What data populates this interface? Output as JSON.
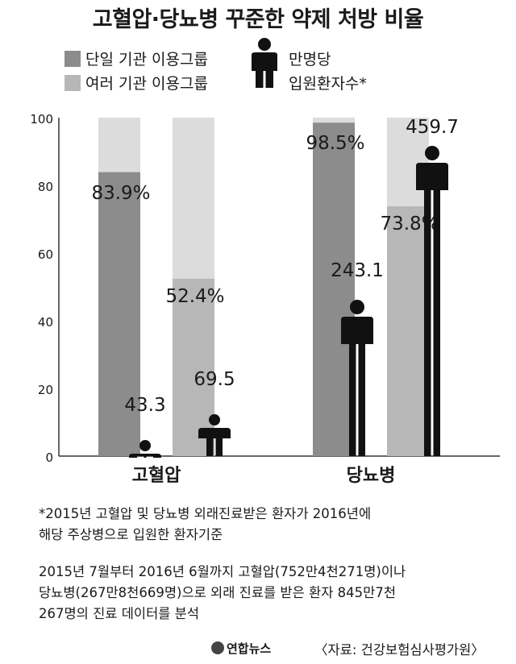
{
  "title": "고혈압·당뇨병 꾸준한 약제 처방 비율",
  "legend": {
    "single_label": "단일 기관 이용그룹",
    "multi_label": "여러 기관 이용그룹",
    "patients_label_line1": "만명당",
    "patients_label_line2": "입원환자수*",
    "patients_icon": "person-icon"
  },
  "colors": {
    "single": "#8c8c8c",
    "multi": "#b7b7b7",
    "background_bar": "#dcdcdc",
    "person": "#111111"
  },
  "chart_data": {
    "type": "bar",
    "categories": [
      "고혈압",
      "당뇨병"
    ],
    "series": [
      {
        "name": "단일 기관 이용그룹",
        "values": [
          83.9,
          98.5
        ],
        "labels": [
          "83.9%",
          "98.5%"
        ]
      },
      {
        "name": "여러 기관 이용그룹",
        "values": [
          52.4,
          73.8
        ],
        "labels": [
          "52.4%",
          "73.8%"
        ]
      }
    ],
    "patients_per_10000": {
      "name": "만명당 입원환자수*",
      "values": [
        [
          43.3,
          69.5
        ],
        [
          243.1,
          459.7
        ]
      ],
      "labels": [
        [
          "43.3",
          "69.5"
        ],
        [
          "243.1",
          "459.7"
        ]
      ]
    },
    "ylim": [
      0,
      100
    ],
    "yticks": [
      "0",
      "20",
      "40",
      "60",
      "80",
      "100"
    ],
    "grid": false,
    "legend_position": "top-left"
  },
  "notes": {
    "footnote_line1": "*2015년 고혈압 및 당뇨병 외래진료받은 환자가 2016년에",
    "footnote_line2": "해당 주상병으로 입원한 환자기준",
    "desc_line1": "2015년 7월부터 2016년 6월까지 고혈압(752만4천271명)이나",
    "desc_line2": "당뇨병(267만8천669명)으로 외래 진료를 받은 환자 845만7천",
    "desc_line3": "267명의 진료 데이터를 분석"
  },
  "footer": {
    "logo": "연합뉴스",
    "source": "〈자료: 건강보험심사평가원〉"
  }
}
